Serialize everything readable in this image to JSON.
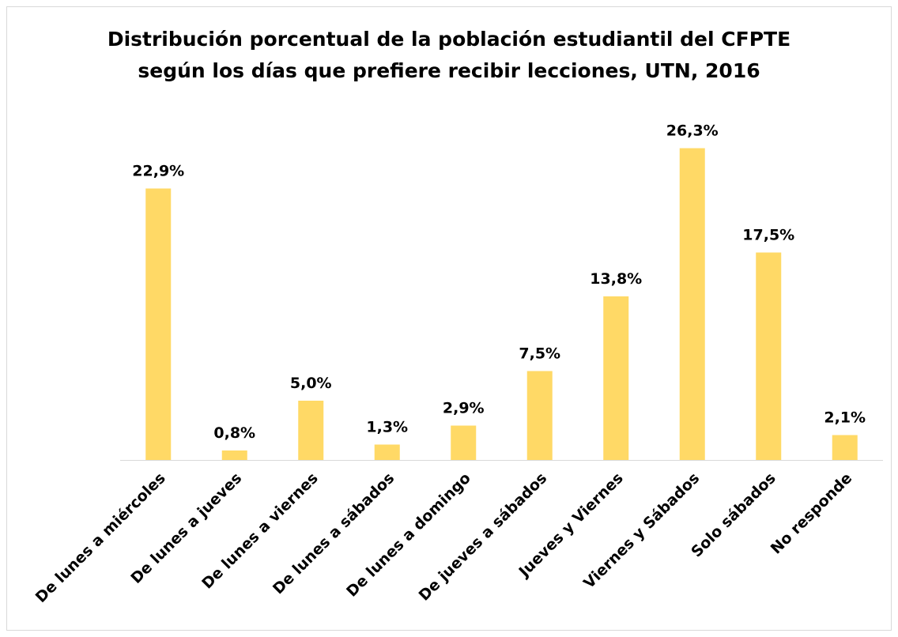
{
  "chart_data": {
    "type": "bar",
    "title": [
      "Distribución porcentual de la población estudiantil del CFPTE",
      "según los días que prefiere recibir lecciones, UTN, 2016"
    ],
    "categories": [
      "De lunes a miércoles",
      "De lunes a jueves",
      "De lunes a viernes",
      "De lunes a sábados",
      "De lunes a domingo",
      "De jueves a sábados",
      "Jueves y Viernes",
      "Viernes y Sábados",
      "Solo sábados",
      "No responde"
    ],
    "values": [
      22.9,
      0.8,
      5.0,
      1.3,
      2.9,
      7.5,
      13.8,
      26.3,
      17.5,
      2.1
    ],
    "value_labels": [
      "22,9%",
      "0,8%",
      "5,0%",
      "1,3%",
      "2,9%",
      "7,5%",
      "13,8%",
      "26,3%",
      "17,5%",
      "2,1%"
    ],
    "color": "#FFD966"
  }
}
